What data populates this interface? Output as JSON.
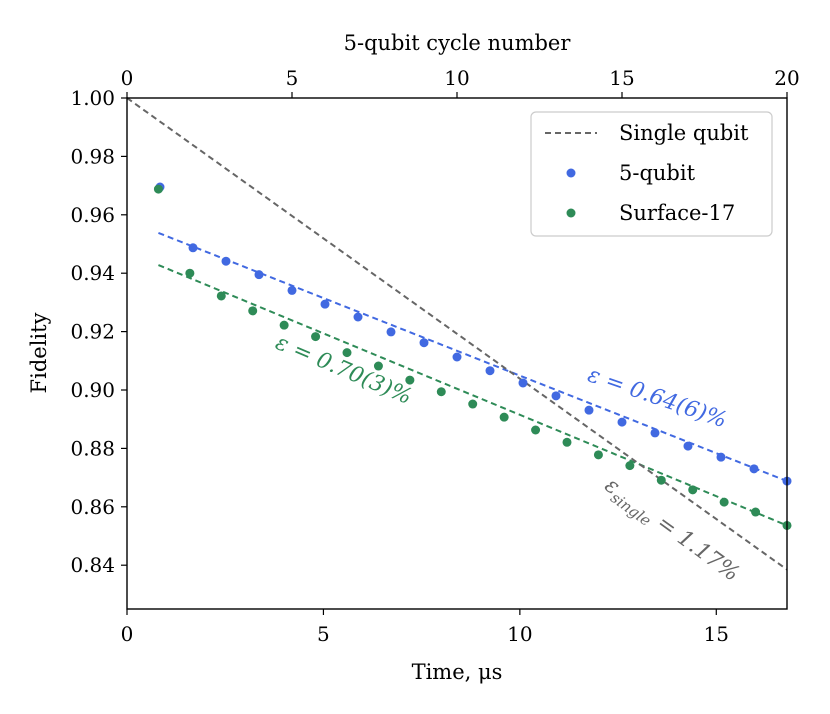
{
  "chart_data": {
    "type": "scatter",
    "xlabel": "Time, μs",
    "ylabel": "Fidelity",
    "top_xlabel": "5-qubit cycle number",
    "xlim": [
      0,
      16.8
    ],
    "ylim": [
      0.825,
      1.0
    ],
    "top_xlim": [
      0,
      20
    ],
    "x_ticks": [
      0,
      5,
      10,
      15
    ],
    "x_tick_labels": [
      "0",
      "5",
      "10",
      "15"
    ],
    "y_ticks": [
      0.84,
      0.86,
      0.88,
      0.9,
      0.92,
      0.94,
      0.96,
      0.98,
      1.0
    ],
    "y_tick_labels": [
      "0.84",
      "0.86",
      "0.88",
      "0.90",
      "0.92",
      "0.94",
      "0.96",
      "0.98",
      "1.00"
    ],
    "top_x_ticks": [
      0,
      5,
      10,
      15,
      20
    ],
    "top_x_tick_labels": [
      "0",
      "5",
      "10",
      "15",
      "20"
    ],
    "grid": false,
    "legend": {
      "position": "top-right",
      "entries": [
        {
          "label": "Single qubit",
          "marker": "dashed-line",
          "color": "#666666"
        },
        {
          "label": "5-qubit",
          "marker": "dot",
          "color": "#4169E1"
        },
        {
          "label": "Surface-17",
          "marker": "dot",
          "color": "#2E8B57"
        }
      ]
    },
    "series": [
      {
        "name": "5-qubit",
        "color": "#4169E1",
        "x": [
          0.84,
          1.68,
          2.52,
          3.36,
          4.2,
          5.04,
          5.88,
          6.72,
          7.56,
          8.4,
          9.24,
          10.08,
          10.92,
          11.76,
          12.6,
          13.44,
          14.28,
          15.12,
          15.96,
          16.8
        ],
        "y": [
          0.9695,
          0.9487,
          0.9441,
          0.9395,
          0.9341,
          0.9294,
          0.925,
          0.9199,
          0.9162,
          0.9113,
          0.9066,
          0.9024,
          0.898,
          0.8931,
          0.889,
          0.8853,
          0.8808,
          0.877,
          0.873,
          0.8688
        ],
        "fit": {
          "x": [
            0.8,
            16.8
          ],
          "y": [
            0.9538,
            0.8688
          ]
        }
      },
      {
        "name": "Surface-17",
        "color": "#2E8B57",
        "x": [
          0.8,
          1.6,
          2.4,
          3.2,
          4.0,
          4.8,
          5.6,
          6.4,
          7.2,
          8.0,
          8.8,
          9.6,
          10.4,
          11.2,
          12.0,
          12.8,
          13.6,
          14.4,
          15.2,
          16.0,
          16.8
        ],
        "y": [
          0.9688,
          0.94,
          0.9322,
          0.9271,
          0.9222,
          0.9183,
          0.9128,
          0.9082,
          0.9034,
          0.8994,
          0.8952,
          0.8907,
          0.8863,
          0.8821,
          0.8778,
          0.8741,
          0.8691,
          0.8658,
          0.8616,
          0.8582,
          0.8536
        ],
        "fit": {
          "x": [
            0.8,
            16.8
          ],
          "y": [
            0.9428,
            0.8536
          ]
        }
      },
      {
        "name": "Single qubit",
        "color": "#666666",
        "line": {
          "x": [
            0,
            16.8
          ],
          "y": [
            1.0,
            0.8385
          ]
        }
      }
    ],
    "annotations": [
      {
        "text": "ε = 0.70(3)%",
        "color": "#2E8B57"
      },
      {
        "text": "ε = 0.64(6)%",
        "color": "#4169E1"
      },
      {
        "text": "ε",
        "sub": "single",
        "rest": " = 1.17%",
        "color": "#666666"
      }
    ]
  }
}
